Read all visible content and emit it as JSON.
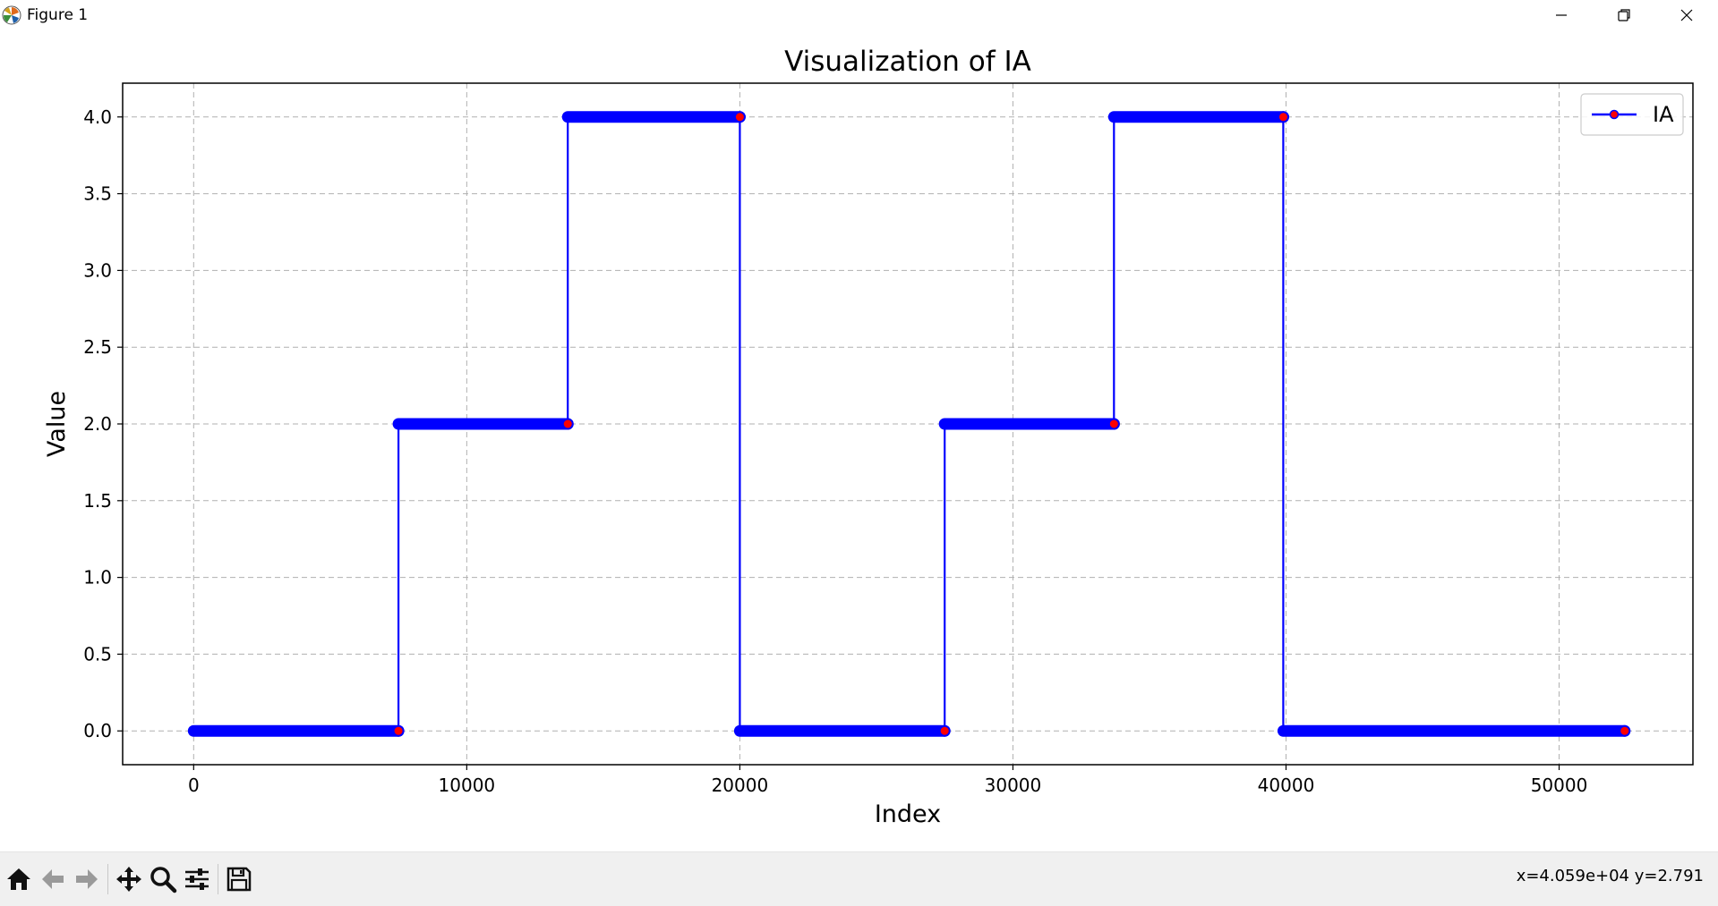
{
  "window": {
    "title": "Figure 1",
    "icons": [
      "matplotlib-icon",
      "minimize-icon",
      "restore-icon",
      "close-icon"
    ]
  },
  "toolbar": {
    "buttons": [
      {
        "name": "home-button",
        "icon": "home-icon"
      },
      {
        "name": "back-button",
        "icon": "arrow-left-icon"
      },
      {
        "name": "forward-button",
        "icon": "arrow-right-icon"
      },
      {
        "name": "pan-button",
        "icon": "move-icon"
      },
      {
        "name": "zoom-button",
        "icon": "zoom-icon"
      },
      {
        "name": "configure-subplots-button",
        "icon": "sliders-icon"
      },
      {
        "name": "save-button",
        "icon": "floppy-icon"
      }
    ],
    "coordinates": "x=4.059e+04 y=2.791"
  },
  "chart_data": {
    "type": "line",
    "title": "Visualization of IA",
    "xlabel": "Index",
    "ylabel": "Value",
    "xlim": [
      -2600,
      54900
    ],
    "ylim": [
      -0.22,
      4.22
    ],
    "xticks": [
      0,
      10000,
      20000,
      30000,
      40000,
      50000
    ],
    "xtick_labels": [
      "0",
      "10000",
      "20000",
      "30000",
      "40000",
      "50000"
    ],
    "yticks": [
      0.0,
      0.5,
      1.0,
      1.5,
      2.0,
      2.5,
      3.0,
      3.5,
      4.0
    ],
    "ytick_labels": [
      "0.0",
      "0.5",
      "1.0",
      "1.5",
      "2.0",
      "2.5",
      "3.0",
      "3.5",
      "4.0"
    ],
    "grid": true,
    "legend_position": "upper right",
    "colors": {
      "line": "#0000ff",
      "marker": "#ff0000"
    },
    "series": [
      {
        "name": "IA",
        "x": [
          0,
          7500,
          7500,
          13700,
          13700,
          20000,
          20000,
          27500,
          27500,
          33700,
          33700,
          39900,
          39900,
          52400
        ],
        "y": [
          0,
          0,
          2,
          2,
          4,
          4,
          0,
          0,
          2,
          2,
          4,
          4,
          0,
          0
        ]
      }
    ]
  }
}
